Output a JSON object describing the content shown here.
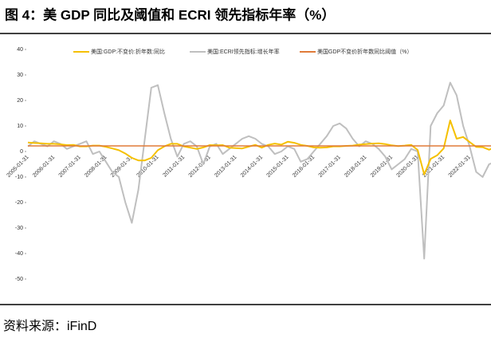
{
  "title": "图 4：美 GDP 同比及阈值和 ECRI 领先指标年率（%）",
  "source": "资料来源：iFinD",
  "chart_data": {
    "type": "line",
    "categories": [
      "2005-01-31",
      null,
      null,
      null,
      "2006-01-31",
      null,
      null,
      null,
      "2007-01-31",
      null,
      null,
      null,
      "2008-01-31",
      null,
      null,
      null,
      "2009-01-31",
      null,
      null,
      null,
      "2010-01-31",
      null,
      null,
      null,
      "2011-01-31",
      null,
      null,
      null,
      "2012-01-31",
      null,
      null,
      null,
      "2013-01-31",
      null,
      null,
      null,
      "2014-01-31",
      null,
      null,
      null,
      "2015-01-31",
      null,
      null,
      null,
      "2016-01-31",
      null,
      null,
      null,
      "2017-01-31",
      null,
      null,
      null,
      "2018-01-31",
      null,
      null,
      null,
      "2019-01-31",
      null,
      null,
      null,
      "2020-01-31",
      null,
      null,
      null,
      "2021-01-31",
      null,
      null,
      null,
      "2022-01-31",
      null,
      null,
      null,
      null,
      null,
      null
    ],
    "series": [
      {
        "name": "美国:GDP:不变价:折年数:同比",
        "color": "#f5c000",
        "width": 2,
        "values": [
          3.5,
          3.3,
          3.2,
          3.0,
          3.0,
          2.8,
          2.5,
          2.6,
          2.0,
          2.0,
          2.3,
          2.3,
          1.8,
          1.2,
          0.5,
          -0.8,
          -2.5,
          -3.5,
          -3.5,
          -2.5,
          0.5,
          2.0,
          3.0,
          3.0,
          2.0,
          1.5,
          1.0,
          1.6,
          2.5,
          2.4,
          2.5,
          1.5,
          1.3,
          1.2,
          1.9,
          2.6,
          1.5,
          2.6,
          3.1,
          2.7,
          3.8,
          3.4,
          2.6,
          2.2,
          1.6,
          1.5,
          1.6,
          2.0,
          2.0,
          2.2,
          2.3,
          2.7,
          2.9,
          3.1,
          3.2,
          2.9,
          2.4,
          2.1,
          2.3,
          2.6,
          0.6,
          -9,
          -2.9,
          -1.5,
          1.2,
          12.2,
          5,
          5.7,
          3.7,
          1.8,
          1.7,
          0.7,
          1.7,
          2.4,
          2.9
        ]
      },
      {
        "name": "美国:ECRI领先指标:增长年率",
        "color": "#bfbfbf",
        "width": 2,
        "values": [
          2,
          4,
          3,
          2,
          4,
          3,
          1,
          2,
          3,
          4,
          -1,
          0,
          -4,
          -8,
          -10,
          -20,
          -28,
          -15,
          5,
          25,
          26,
          15,
          5,
          -2,
          3,
          4,
          2,
          -5,
          2,
          3,
          -1,
          1,
          3,
          5,
          6,
          5,
          3,
          2,
          -1,
          0,
          2,
          1,
          -4,
          -3,
          0,
          3,
          6,
          10,
          11,
          9,
          5,
          2,
          4,
          3,
          1,
          -2,
          -7,
          -5,
          -3,
          1,
          0,
          -42,
          10,
          15,
          18,
          27,
          22,
          10,
          2,
          -8,
          -10,
          -5,
          -4,
          -10,
          -12
        ]
      },
      {
        "name": "美国GDP不变价折年数同比阈值（%）",
        "color": "#e07b39",
        "width": 1.5,
        "values": [
          2.2,
          2.2,
          2.2,
          2.2,
          2.2,
          2.2,
          2.2,
          2.2,
          2.2,
          2.2,
          2.2,
          2.2,
          2.2,
          2.2,
          2.2,
          2.2,
          2.2,
          2.2,
          2.2,
          2.2,
          2.2,
          2.2,
          2.2,
          2.2,
          2.2,
          2.2,
          2.2,
          2.2,
          2.2,
          2.2,
          2.2,
          2.2,
          2.2,
          2.2,
          2.2,
          2.2,
          2.2,
          2.2,
          2.2,
          2.2,
          2.2,
          2.2,
          2.2,
          2.2,
          2.2,
          2.2,
          2.2,
          2.2,
          2.2,
          2.2,
          2.2,
          2.2,
          2.2,
          2.2,
          2.2,
          2.2,
          2.2,
          2.2,
          2.2,
          2.2,
          2.2,
          2.2,
          2.2,
          2.2,
          2.2,
          2.2,
          2.2,
          2.2,
          2.2,
          2.2,
          2.2,
          2.2,
          2.2,
          2.2,
          2.2
        ]
      }
    ],
    "ylim": [
      -50,
      40
    ],
    "yticks": [
      -50,
      -40,
      -30,
      -20,
      -10,
      0,
      10,
      20,
      30,
      40
    ],
    "legend": "top"
  }
}
